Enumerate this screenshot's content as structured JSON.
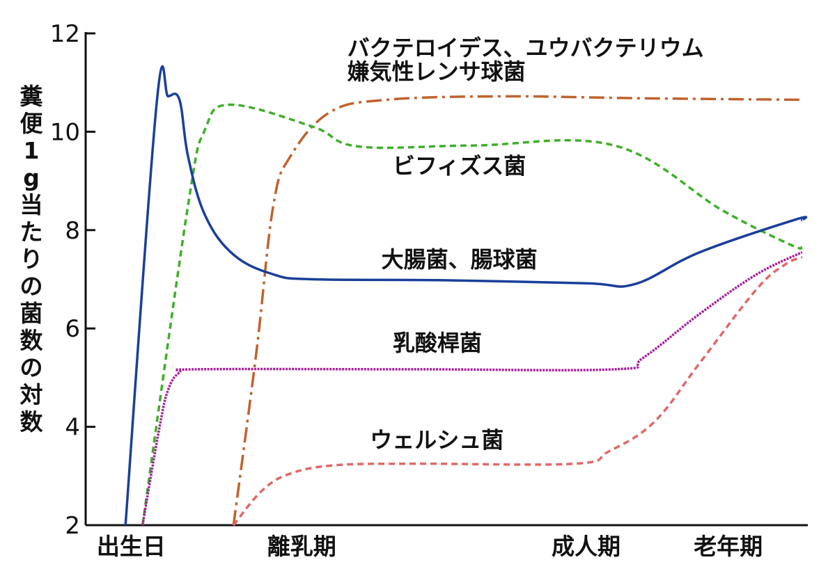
{
  "chart_data": {
    "type": "line",
    "ylabel": "糞便1g当たりの菌数の対数",
    "ylim": [
      2,
      12
    ],
    "yticks": [
      "2",
      "4",
      "6",
      "8",
      "10",
      "12"
    ],
    "x_categories": [
      {
        "label": "出生日",
        "x": 0
      },
      {
        "label": "離乳期",
        "x": 3
      },
      {
        "label": "成人期",
        "x": 8
      },
      {
        "label": "老年期",
        "x": 10.5
      }
    ],
    "xlim": [
      -0.8,
      11.9
    ],
    "series": [
      {
        "name": "バクテロイデス、ユウバクテリウム 嫌気性レンサ球菌",
        "color": "#c0622d",
        "dash": "dashdot",
        "points": [
          [
            1.8,
            2.0
          ],
          [
            2.2,
            5.5
          ],
          [
            2.5,
            8.5
          ],
          [
            2.8,
            9.5
          ],
          [
            3.5,
            10.4
          ],
          [
            4.5,
            10.65
          ],
          [
            6.5,
            10.72
          ],
          [
            9.0,
            10.68
          ],
          [
            11.8,
            10.65
          ]
        ]
      },
      {
        "name": "ビフィズス菌",
        "color": "#3fae2a",
        "dash": "dashed",
        "points": [
          [
            0.2,
            2.0
          ],
          [
            1.0,
            8.5
          ],
          [
            1.3,
            10.05
          ],
          [
            1.75,
            10.55
          ],
          [
            3.2,
            10.1
          ],
          [
            4.0,
            9.7
          ],
          [
            6.0,
            9.72
          ],
          [
            8.5,
            9.72
          ],
          [
            10.4,
            8.4
          ],
          [
            11.6,
            7.7
          ],
          [
            11.8,
            7.65
          ]
        ]
      },
      {
        "name": "大腸菌、腸球菌",
        "color": "#1a3f9a",
        "dash": "solid",
        "points": [
          [
            -0.1,
            2.0
          ],
          [
            0.45,
            10.6
          ],
          [
            0.65,
            10.72
          ],
          [
            0.85,
            10.65
          ],
          [
            1.0,
            9.5
          ],
          [
            1.3,
            8.3
          ],
          [
            1.8,
            7.5
          ],
          [
            2.5,
            7.1
          ],
          [
            3.2,
            7.0
          ],
          [
            5.5,
            6.98
          ],
          [
            8.0,
            6.92
          ],
          [
            8.85,
            6.9
          ],
          [
            10.0,
            7.55
          ],
          [
            11.7,
            8.22
          ],
          [
            11.8,
            8.2
          ]
        ]
      },
      {
        "name": "乳酸桿菌",
        "color": "#a6209a",
        "dash": "dotted",
        "points": [
          [
            0.2,
            2.0
          ],
          [
            0.5,
            4.0
          ],
          [
            0.65,
            4.75
          ],
          [
            0.85,
            5.1
          ],
          [
            1.2,
            5.17
          ],
          [
            5.0,
            5.17
          ],
          [
            8.5,
            5.17
          ],
          [
            9.0,
            5.4
          ],
          [
            10.0,
            6.3
          ],
          [
            11.0,
            7.1
          ],
          [
            11.8,
            7.55
          ]
        ]
      },
      {
        "name": "ウェルシュ菌",
        "color": "#e06868",
        "dash": "dashed",
        "points": [
          [
            1.8,
            2.0
          ],
          [
            2.3,
            2.7
          ],
          [
            2.8,
            3.05
          ],
          [
            3.6,
            3.22
          ],
          [
            5.0,
            3.25
          ],
          [
            7.8,
            3.25
          ],
          [
            8.4,
            3.5
          ],
          [
            9.2,
            4.1
          ],
          [
            10.0,
            5.3
          ],
          [
            11.0,
            6.8
          ],
          [
            11.5,
            7.3
          ],
          [
            11.8,
            7.45
          ]
        ]
      }
    ],
    "annotations": [
      {
        "text": "バクテロイデス、ユウバクテリウム",
        "x": 3.8,
        "y": 11.55
      },
      {
        "text": "嫌気性レンサ球菌",
        "x": 3.8,
        "y": 11.07
      },
      {
        "text": "ビフィズス菌",
        "x": 4.6,
        "y": 9.15
      },
      {
        "text": "大腸菌、腸球菌",
        "x": 4.4,
        "y": 7.25
      },
      {
        "text": "乳酸桿菌",
        "x": 4.6,
        "y": 5.55
      },
      {
        "text": "ウェルシュ菌",
        "x": 4.2,
        "y": 3.58
      }
    ]
  }
}
